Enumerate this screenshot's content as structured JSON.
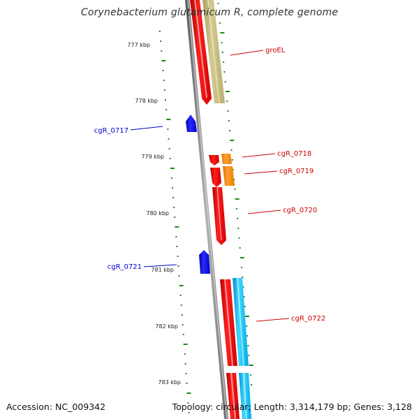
{
  "title": "Corynebacterium glutamicum R, complete genome",
  "accession_label": "Accession: NC_009342",
  "topology_label": "Topology: circular; Length: 3,314,179 bp; Genes: 3,128",
  "ticks": [
    "777 kbp",
    "778 kbp",
    "779 kbp",
    "780 kbp",
    "781 kbp",
    "782 kbp",
    "783 kbp"
  ],
  "genes": [
    {
      "id": "groEL",
      "strand": "forward",
      "color": "#c8be7e"
    },
    {
      "id": "cgR_0717",
      "strand": "reverse",
      "color": "#0000ee"
    },
    {
      "id": "cgR_0718",
      "strand": "forward",
      "color": "#ff8c00"
    },
    {
      "id": "cgR_0719",
      "strand": "forward",
      "color": "#ff8c00"
    },
    {
      "id": "cgR_0720",
      "strand": "forward",
      "color": "#ff0000"
    },
    {
      "id": "cgR_0721",
      "strand": "reverse",
      "color": "#0000ee"
    },
    {
      "id": "cgR_0722",
      "strand": "forward",
      "color": "#00bfff"
    }
  ],
  "colors": {
    "forward_label": "#cc0000",
    "reverse_label": "#0000cc",
    "backbone": "#808080",
    "gc_dots": "#1a8a1a",
    "cds_forward": "#ff0000",
    "cds_reverse": "#0000ee"
  }
}
